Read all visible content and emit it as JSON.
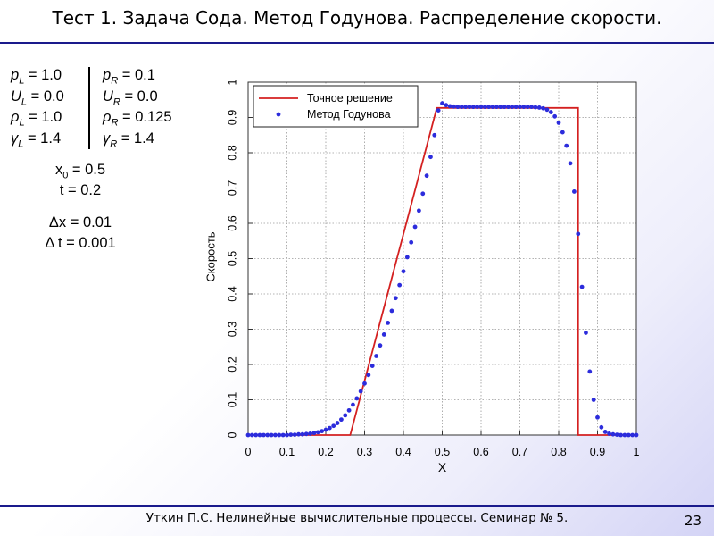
{
  "slide": {
    "title": "Тест 1. Задача Сода. Метод Годунова. Распределение скорости.",
    "footer": "Уткин П.С. Нелинейные  вычислительные  процессы. Семинар № 5.",
    "page_number": "23"
  },
  "params": {
    "left": [
      {
        "sym": "p",
        "sub": "L",
        "val": " = 1.0"
      },
      {
        "sym": "U",
        "sub": "L",
        "val": " = 0.0"
      },
      {
        "sym": "ρ",
        "sub": "L",
        "val": " = 1.0"
      },
      {
        "sym": "γ",
        "sub": "L",
        "val": " = 1.4"
      }
    ],
    "right": [
      {
        "sym": "p",
        "sub": "R",
        "val": " = 0.1"
      },
      {
        "sym": "U",
        "sub": "R",
        "val": " = 0.0"
      },
      {
        "sym": "ρ",
        "sub": "R",
        "val": " = 0.125"
      },
      {
        "sym": "γ",
        "sub": "R",
        "val": " = 1.4"
      }
    ],
    "x0": {
      "sym": "x",
      "sub": "0",
      "val": " = 0.5"
    },
    "t": "t = 0.2",
    "dx": "Δx = 0.01",
    "dt": "Δ t = 0.001"
  },
  "chart_data": {
    "type": "line",
    "xlabel": "X",
    "ylabel": "Скорость",
    "xlim": [
      0,
      1
    ],
    "ylim": [
      0,
      1
    ],
    "xticks": [
      0,
      0.1,
      0.2,
      0.3,
      0.4,
      0.5,
      0.6,
      0.7,
      0.8,
      0.9,
      1
    ],
    "yticks": [
      0,
      0.1,
      0.2,
      0.3,
      0.4,
      0.5,
      0.6,
      0.7,
      0.8,
      0.9,
      1
    ],
    "grid": true,
    "legend_position": "top-left",
    "series": [
      {
        "name": "Точное решение",
        "kind": "line",
        "color": "#d42020",
        "x": [
          0,
          0.263,
          0.486,
          0.85,
          0.85,
          1
        ],
        "y": [
          0,
          0,
          0.927,
          0.927,
          0,
          0
        ]
      },
      {
        "name": "Метод Годунова",
        "kind": "scatter",
        "color": "#2c2cdc",
        "x": [
          0,
          0.01,
          0.02,
          0.03,
          0.04,
          0.05,
          0.06,
          0.07,
          0.08,
          0.09,
          0.1,
          0.11,
          0.12,
          0.13,
          0.14,
          0.15,
          0.16,
          0.17,
          0.18,
          0.19,
          0.2,
          0.21,
          0.22,
          0.23,
          0.24,
          0.25,
          0.26,
          0.27,
          0.28,
          0.29,
          0.3,
          0.31,
          0.32,
          0.33,
          0.34,
          0.35,
          0.36,
          0.37,
          0.38,
          0.39,
          0.4,
          0.41,
          0.42,
          0.43,
          0.44,
          0.45,
          0.46,
          0.47,
          0.48,
          0.49,
          0.5,
          0.51,
          0.52,
          0.53,
          0.54,
          0.55,
          0.56,
          0.57,
          0.58,
          0.59,
          0.6,
          0.61,
          0.62,
          0.63,
          0.64,
          0.65,
          0.66,
          0.67,
          0.68,
          0.69,
          0.7,
          0.71,
          0.72,
          0.73,
          0.74,
          0.75,
          0.76,
          0.77,
          0.78,
          0.79,
          0.8,
          0.81,
          0.82,
          0.83,
          0.84,
          0.85,
          0.86,
          0.87,
          0.88,
          0.89,
          0.9,
          0.91,
          0.92,
          0.93,
          0.94,
          0.95,
          0.96,
          0.97,
          0.98,
          0.99,
          1
        ],
        "y": [
          0,
          0,
          0,
          0,
          0,
          0,
          0,
          0,
          0,
          0,
          0,
          0.001,
          0.001,
          0.002,
          0.002,
          0.003,
          0.004,
          0.006,
          0.008,
          0.011,
          0.015,
          0.02,
          0.026,
          0.034,
          0.044,
          0.056,
          0.07,
          0.086,
          0.104,
          0.124,
          0.146,
          0.17,
          0.196,
          0.224,
          0.254,
          0.285,
          0.318,
          0.352,
          0.388,
          0.425,
          0.464,
          0.504,
          0.546,
          0.59,
          0.636,
          0.684,
          0.735,
          0.788,
          0.85,
          0.92,
          0.94,
          0.935,
          0.932,
          0.931,
          0.93,
          0.93,
          0.93,
          0.93,
          0.93,
          0.93,
          0.93,
          0.93,
          0.93,
          0.93,
          0.93,
          0.93,
          0.93,
          0.93,
          0.93,
          0.93,
          0.93,
          0.93,
          0.93,
          0.93,
          0.929,
          0.928,
          0.926,
          0.922,
          0.915,
          0.903,
          0.885,
          0.858,
          0.82,
          0.77,
          0.69,
          0.57,
          0.42,
          0.29,
          0.18,
          0.1,
          0.05,
          0.022,
          0.009,
          0.004,
          0.002,
          0.001,
          0,
          0,
          0,
          0,
          0
        ]
      }
    ]
  }
}
